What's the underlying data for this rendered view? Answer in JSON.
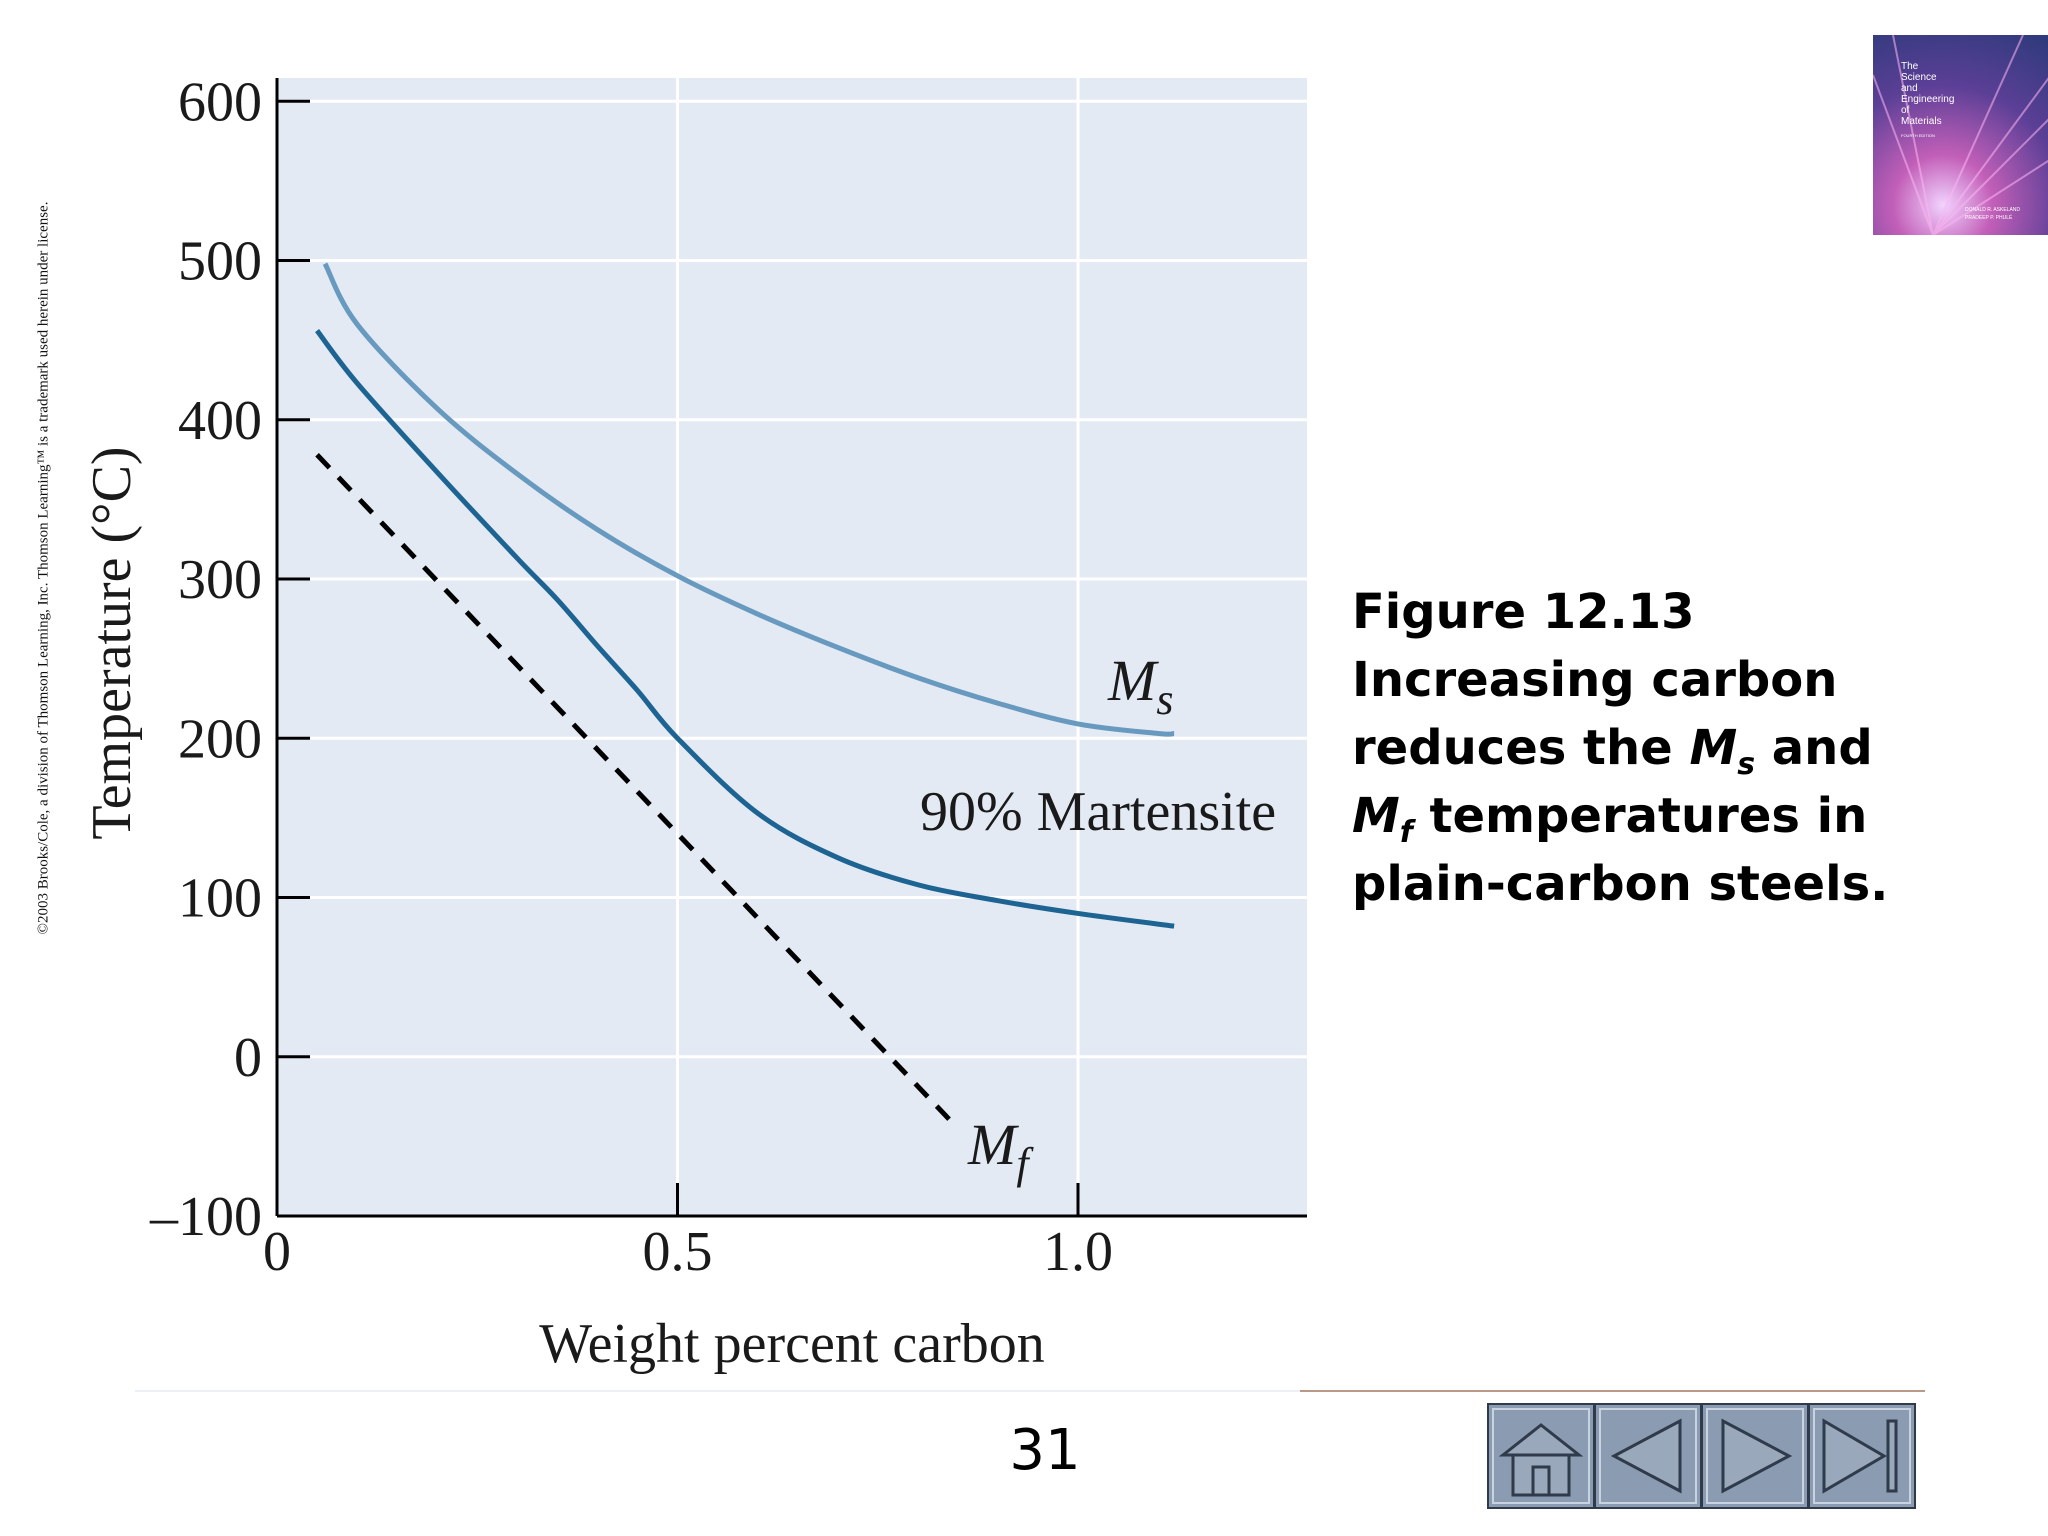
{
  "copyright": "©2003 Brooks/Cole, a division of Thomson Learning, Inc.  Thomson Learning™ is a trademark used herein under license.",
  "book": {
    "title_lines": [
      "The",
      "Science",
      "and",
      "Engineering",
      "of",
      "Materials"
    ],
    "edition": "FOURTH EDITION",
    "authors": [
      "DONALD R. ASKELAND",
      "PRADEEP P. PHULÉ"
    ]
  },
  "caption": {
    "heading": "Figure 12.13",
    "line1": "Increasing carbon",
    "line2_pre": "reduces the ",
    "ms_letter": "M",
    "ms_sub": "s",
    "line2_post": " and",
    "mf_letter": "M",
    "mf_sub": "f",
    "line3_post": " temperatures in",
    "line4": "plain-carbon steels."
  },
  "page_number": "31",
  "nav": {
    "home": "home-icon",
    "previous": "previous-triangle-icon",
    "next": "next-triangle-icon",
    "last": "last-slide-icon"
  },
  "colors": {
    "plot_background": "#e3eaf4",
    "grid": "#ffffff",
    "ms_line": "#6899bf",
    "martensite_line": "#1e6493",
    "mf_line": "#000000",
    "nav_button": "#8a9bb2"
  },
  "chart_data": {
    "type": "line",
    "title": "",
    "xlabel": "Weight percent carbon",
    "ylabel": "Temperature (°C)",
    "xlim": [
      0,
      1.3
    ],
    "ylim": [
      -100,
      610
    ],
    "xticks": [
      0,
      0.5,
      1.0
    ],
    "xtick_labels": [
      "0",
      "0.5",
      "1.0"
    ],
    "yticks": [
      -100,
      0,
      100,
      200,
      300,
      400,
      500,
      600
    ],
    "ytick_labels": [
      "–100",
      "0",
      "100",
      "200",
      "300",
      "400",
      "500",
      "600"
    ],
    "grid": true,
    "series": [
      {
        "name": "M",
        "name_sub": "s",
        "style": "solid",
        "x": [
          0.06,
          0.1,
          0.2,
          0.3,
          0.4,
          0.5,
          0.6,
          0.7,
          0.8,
          0.9,
          1.0,
          1.1,
          1.12
        ],
        "y": [
          498,
          460,
          407,
          366,
          331,
          302,
          278,
          257,
          238,
          222,
          209,
          203,
          203
        ]
      },
      {
        "name": "90% Martensite",
        "style": "solid",
        "x": [
          0.05,
          0.1,
          0.2,
          0.3,
          0.35,
          0.4,
          0.45,
          0.5,
          0.6,
          0.7,
          0.8,
          0.9,
          1.0,
          1.12
        ],
        "y": [
          456,
          423,
          367,
          313,
          287,
          258,
          230,
          200,
          153,
          125,
          108,
          98,
          90,
          82
        ]
      },
      {
        "name": "M",
        "name_sub": "f",
        "style": "dashed",
        "x": [
          0.05,
          0.85
        ],
        "y": [
          378,
          -45
        ]
      }
    ]
  }
}
